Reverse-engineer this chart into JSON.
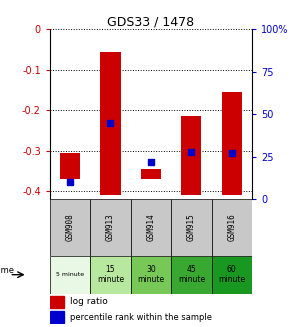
{
  "title": "GDS33 / 1478",
  "samples": [
    "GSM908",
    "GSM913",
    "GSM914",
    "GSM915",
    "GSM916"
  ],
  "bar_bottoms": [
    -0.37,
    -0.41,
    -0.37,
    -0.41,
    -0.41
  ],
  "bar_tops": [
    -0.305,
    -0.055,
    -0.345,
    -0.215,
    -0.155
  ],
  "percentile_pct": [
    10,
    45,
    22,
    28,
    27
  ],
  "time_labels": [
    "5 minute",
    "15\nminute",
    "30\nminute",
    "45\nminute",
    "60\nminute"
  ],
  "time_colors": [
    "#e8f8e4",
    "#b8e8a0",
    "#78c858",
    "#38a830",
    "#189820"
  ],
  "ylim_left": [
    -0.42,
    0.0
  ],
  "ylim_right": [
    0,
    100
  ],
  "yticks_left": [
    0,
    -0.1,
    -0.2,
    -0.3,
    -0.4
  ],
  "yticks_right": [
    100,
    75,
    50,
    25,
    0
  ],
  "bar_color": "#cc0000",
  "dot_color": "#0000cc",
  "bg_plot": "#ffffff",
  "bg_xlabel": "#c8c8c8",
  "left_label_color": "#cc0000",
  "right_label_color": "#0000cc",
  "bar_width": 0.5
}
